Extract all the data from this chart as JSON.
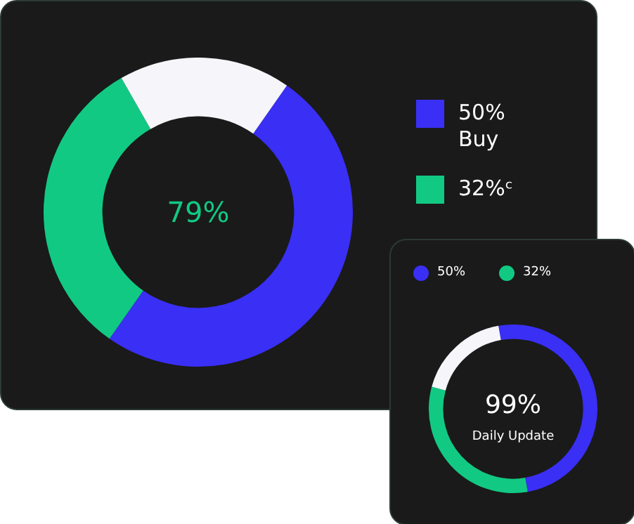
{
  "chart_data": [
    {
      "type": "donut",
      "categories": [
        "50% Buy",
        "32%ᶜ",
        null
      ],
      "values": [
        50,
        32,
        18
      ],
      "colors": [
        "#3a2ff5",
        "#12c983",
        "#f5f5fa"
      ],
      "legend": "right",
      "annotations": [
        "79%"
      ]
    },
    {
      "type": "donut",
      "categories": [
        "50%",
        "32%",
        null
      ],
      "values": [
        50,
        32,
        18
      ],
      "colors": [
        "#3a2ff5",
        "#12c983",
        "#f5f5fa"
      ],
      "legend": "top left",
      "annotations": [
        "99%",
        "Daily Update"
      ]
    }
  ]
}
